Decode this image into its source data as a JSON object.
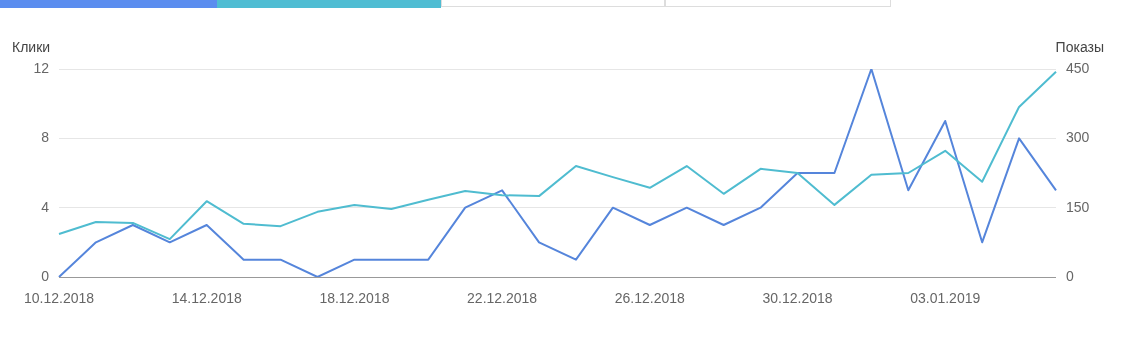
{
  "chart_data": {
    "type": "line",
    "categories": [
      "10.12.2018",
      null,
      null,
      null,
      "14.12.2018",
      null,
      null,
      null,
      "18.12.2018",
      null,
      null,
      null,
      "22.12.2018",
      null,
      null,
      null,
      "26.12.2018",
      null,
      null,
      null,
      "30.12.2018",
      null,
      null,
      null,
      "03.01.2019",
      null,
      null,
      null
    ],
    "series": [
      {
        "name": null,
        "color": "#4fbcd0",
        "axis": "y2",
        "values": [
          93,
          119,
          117,
          82,
          164,
          115,
          110,
          141,
          156,
          147,
          167,
          186,
          177,
          175,
          240,
          216,
          193,
          240,
          180,
          234,
          225,
          156,
          221,
          225,
          273,
          206,
          368,
          444
        ]
      },
      {
        "name": null,
        "color": "#5585db",
        "values": [
          0,
          2,
          3,
          2,
          3,
          1,
          1,
          0,
          1,
          1,
          1,
          4,
          5,
          2,
          1,
          4,
          3,
          4,
          3,
          4,
          6,
          6,
          12,
          5,
          9,
          2,
          8,
          5
        ]
      }
    ],
    "ylabel": "Клики",
    "y2label": "Показы",
    "ylim": [
      0,
      12
    ],
    "yticks": [
      0,
      4,
      8,
      12
    ],
    "y2lim": [
      0,
      450
    ],
    "y2ticks": [
      0,
      150,
      300,
      450
    ],
    "grid": "y",
    "legend": false,
    "marker": "none",
    "line_style": "solid"
  }
}
